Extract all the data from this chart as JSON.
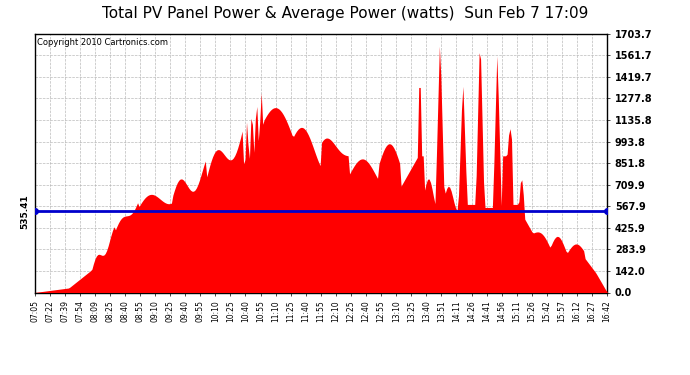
{
  "title": "Total PV Panel Power & Average Power (watts)  Sun Feb 7 17:09",
  "copyright": "Copyright 2010 Cartronics.com",
  "avg_power": 535.41,
  "y_max": 1703.7,
  "y_min": 0.0,
  "ytick_labels": [
    "0.0",
    "142.0",
    "283.9",
    "425.9",
    "567.9",
    "709.9",
    "851.8",
    "993.8",
    "1135.8",
    "1277.8",
    "1419.7",
    "1561.7",
    "1703.7"
  ],
  "ytick_values": [
    0.0,
    142.0,
    283.9,
    425.9,
    567.9,
    709.9,
    851.8,
    993.8,
    1135.8,
    1277.8,
    1419.7,
    1561.7,
    1703.7
  ],
  "fill_color": "#FF0000",
  "line_color": "#0000CC",
  "background_color": "#FFFFFF",
  "grid_color": "#AAAAAA",
  "title_fontsize": 11,
  "copyright_fontsize": 6,
  "avg_label_fontsize": 7,
  "xtick_labels": [
    "07:05",
    "07:22",
    "07:39",
    "07:54",
    "08:09",
    "08:25",
    "08:40",
    "08:55",
    "09:10",
    "09:25",
    "09:40",
    "09:55",
    "10:10",
    "10:25",
    "10:40",
    "10:55",
    "11:10",
    "11:25",
    "11:40",
    "11:55",
    "12:10",
    "12:25",
    "12:40",
    "12:55",
    "13:10",
    "13:25",
    "13:40",
    "13:51",
    "14:11",
    "14:26",
    "14:41",
    "14:56",
    "15:11",
    "15:26",
    "15:42",
    "15:57",
    "16:12",
    "16:27",
    "16:42"
  ]
}
